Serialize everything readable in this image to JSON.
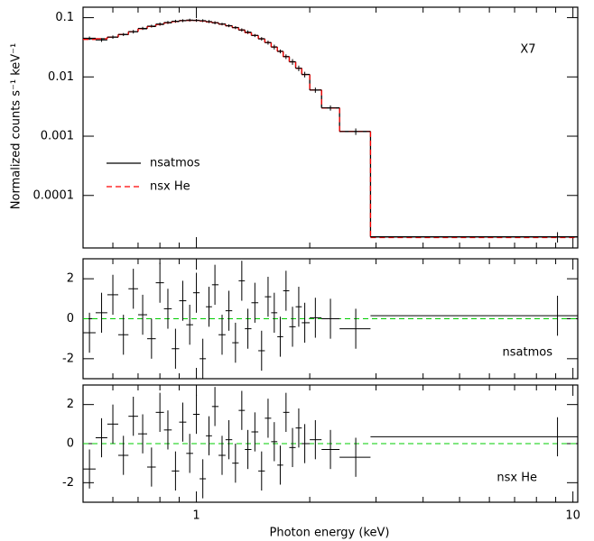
{
  "chart_data": [
    {
      "type": "scatter",
      "annotation": "X7",
      "ylabel": "Normalized counts s⁻¹ keV⁻¹",
      "log_x": true,
      "log_y": true,
      "xlim": [
        0.5,
        10.3
      ],
      "ylim": [
        1.3e-05,
        0.15
      ],
      "yticks": [
        0.1,
        0.01,
        0.001,
        0.0001
      ],
      "color": "#000000",
      "x": [
        0.52,
        0.56,
        0.6,
        0.64,
        0.68,
        0.72,
        0.76,
        0.8,
        0.84,
        0.88,
        0.92,
        0.96,
        1.0,
        1.04,
        1.08,
        1.12,
        1.17,
        1.22,
        1.27,
        1.32,
        1.37,
        1.43,
        1.49,
        1.55,
        1.61,
        1.67,
        1.73,
        1.8,
        1.87,
        1.94,
        2.07,
        2.27,
        2.65,
        9.1
      ],
      "x_lo": [
        0.5,
        0.54,
        0.58,
        0.62,
        0.66,
        0.7,
        0.74,
        0.78,
        0.82,
        0.86,
        0.9,
        0.94,
        0.98,
        1.02,
        1.06,
        1.1,
        1.145,
        1.195,
        1.245,
        1.295,
        1.345,
        1.4,
        1.46,
        1.52,
        1.58,
        1.64,
        1.7,
        1.765,
        1.835,
        1.905,
        2.0,
        2.15,
        2.4,
        2.9
      ],
      "x_hi": [
        0.54,
        0.58,
        0.62,
        0.66,
        0.7,
        0.74,
        0.78,
        0.82,
        0.86,
        0.9,
        0.94,
        0.98,
        1.02,
        1.06,
        1.1,
        1.145,
        1.195,
        1.245,
        1.295,
        1.345,
        1.4,
        1.46,
        1.52,
        1.58,
        1.64,
        1.7,
        1.765,
        1.835,
        1.905,
        2.0,
        2.15,
        2.4,
        2.9,
        10.3
      ],
      "values": [
        0.045,
        0.042,
        0.047,
        0.052,
        0.058,
        0.066,
        0.072,
        0.078,
        0.083,
        0.087,
        0.089,
        0.091,
        0.09,
        0.089,
        0.086,
        0.082,
        0.078,
        0.073,
        0.068,
        0.062,
        0.057,
        0.05,
        0.044,
        0.038,
        0.032,
        0.027,
        0.022,
        0.018,
        0.014,
        0.011,
        0.006,
        0.003,
        0.0012,
        2e-05
      ],
      "y_err": [
        0.003,
        0.003,
        0.003,
        0.003,
        0.004,
        0.004,
        0.004,
        0.005,
        0.005,
        0.005,
        0.005,
        0.005,
        0.005,
        0.005,
        0.005,
        0.005,
        0.004,
        0.004,
        0.004,
        0.004,
        0.004,
        0.003,
        0.003,
        0.003,
        0.003,
        0.002,
        0.002,
        0.002,
        0.0015,
        0.0012,
        0.0006,
        0.0003,
        0.00015,
        4e-06
      ],
      "models": [
        {
          "name": "nsatmos",
          "color": "#000000",
          "dashed": false,
          "values": [
            0.044,
            0.044,
            0.047,
            0.052,
            0.058,
            0.065,
            0.071,
            0.077,
            0.082,
            0.086,
            0.089,
            0.09,
            0.09,
            0.088,
            0.085,
            0.082,
            0.078,
            0.073,
            0.068,
            0.062,
            0.056,
            0.05,
            0.044,
            0.038,
            0.032,
            0.027,
            0.022,
            0.018,
            0.014,
            0.011,
            0.006,
            0.003,
            0.0012,
            2e-05
          ]
        },
        {
          "name": "nsx He",
          "color": "#ff0000",
          "dashed": true,
          "values": [
            0.043,
            0.044,
            0.047,
            0.052,
            0.058,
            0.065,
            0.071,
            0.077,
            0.082,
            0.086,
            0.089,
            0.09,
            0.09,
            0.088,
            0.085,
            0.082,
            0.078,
            0.073,
            0.068,
            0.062,
            0.056,
            0.05,
            0.044,
            0.038,
            0.032,
            0.027,
            0.022,
            0.018,
            0.014,
            0.011,
            0.006,
            0.003,
            0.0012,
            1.95e-05
          ]
        }
      ]
    },
    {
      "type": "residual",
      "annotation": "nsatmos",
      "xlim": [
        0.5,
        10.3
      ],
      "ylim": [
        -3,
        3
      ],
      "yticks": [
        -2,
        0,
        2
      ],
      "error": 1,
      "color": "#000000",
      "zero_color": "#00cc00",
      "values": [
        -0.7,
        0.3,
        1.2,
        -0.8,
        1.5,
        0.2,
        -1.0,
        1.8,
        0.5,
        -1.5,
        0.9,
        -0.3,
        1.3,
        -2.0,
        0.6,
        1.7,
        -0.8,
        0.4,
        -1.2,
        1.9,
        -0.5,
        0.8,
        -1.6,
        1.1,
        0.3,
        -0.9,
        1.4,
        -0.4,
        0.6,
        -0.2,
        0.05,
        0.0,
        -0.5,
        0.15
      ]
    },
    {
      "type": "residual",
      "annotation": "nsx He",
      "xlim": [
        0.5,
        10.3
      ],
      "ylim": [
        -3,
        3
      ],
      "yticks": [
        -2,
        0,
        2
      ],
      "error": 1,
      "color": "#000000",
      "zero_color": "#00cc00",
      "xlabel": "Photon energy (keV)",
      "xticks": [
        1,
        10
      ],
      "xminor": [
        0.5,
        0.6,
        0.7,
        0.8,
        0.9,
        2,
        3,
        4,
        5,
        6,
        7,
        8,
        9
      ],
      "values": [
        -1.3,
        0.3,
        1.0,
        -0.6,
        1.4,
        0.5,
        -1.2,
        1.6,
        0.7,
        -1.4,
        1.1,
        -0.5,
        1.5,
        -1.8,
        0.4,
        1.9,
        -0.6,
        0.2,
        -1.0,
        1.7,
        -0.3,
        0.6,
        -1.4,
        1.3,
        0.1,
        -1.1,
        1.6,
        -0.2,
        0.8,
        0.0,
        0.2,
        -0.3,
        -0.7,
        0.35
      ]
    }
  ]
}
